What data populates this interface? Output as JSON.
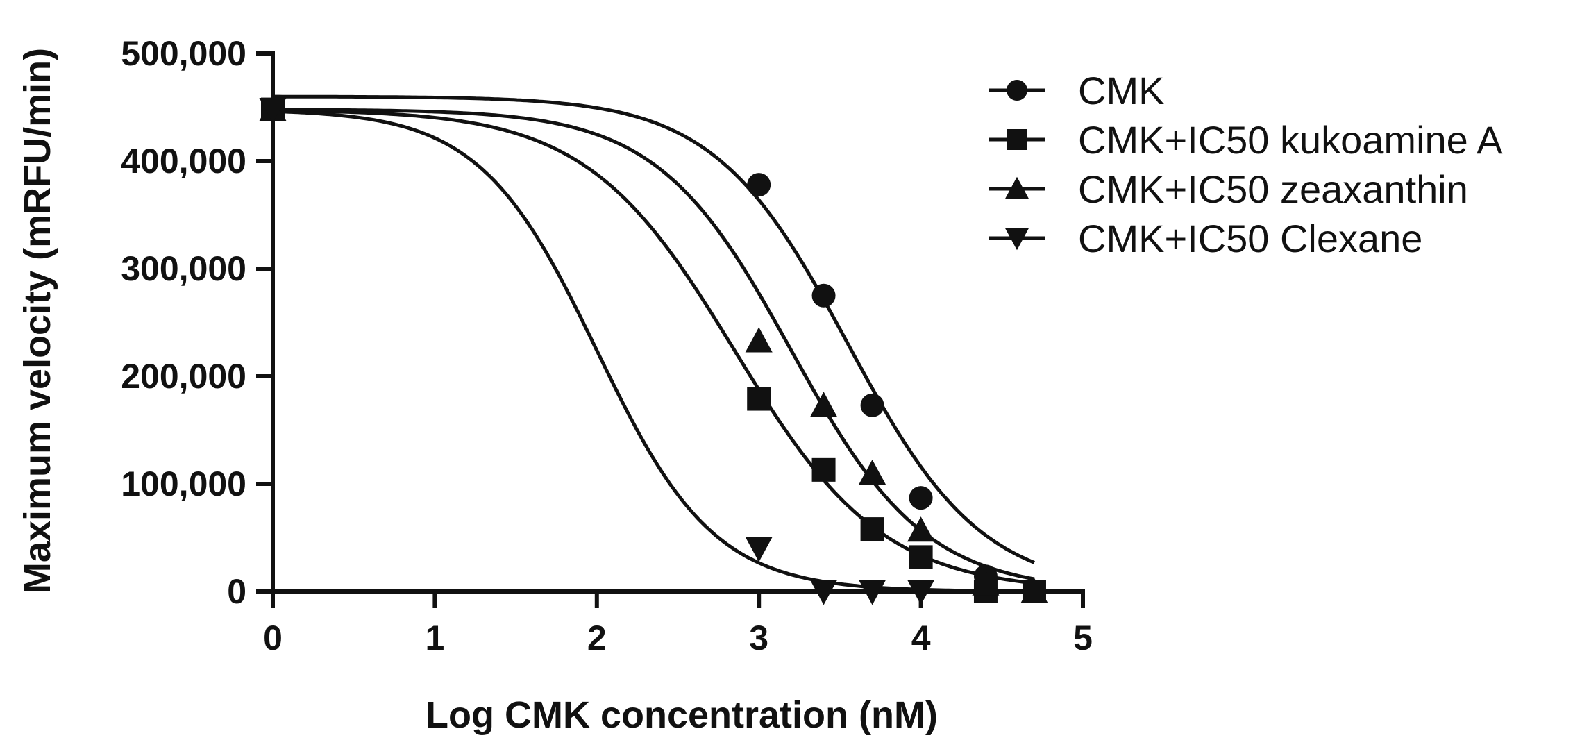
{
  "chart_data": {
    "type": "scatter",
    "title": "",
    "xlabel": "Log CMK concentration (nM)",
    "ylabel": "Maximum velocity (mRFU/min)",
    "xlim": [
      0,
      5
    ],
    "ylim": [
      0,
      500000
    ],
    "x_ticks": [
      0,
      1,
      2,
      3,
      4,
      5
    ],
    "x_tick_labels": [
      "0",
      "1",
      "2",
      "3",
      "4",
      "5"
    ],
    "y_ticks": [
      0,
      100000,
      200000,
      300000,
      400000,
      500000
    ],
    "y_tick_labels": [
      "0",
      "100,000",
      "200,000",
      "300,000",
      "400,000",
      "500,000"
    ],
    "grid": false,
    "legend_position": "right",
    "series": [
      {
        "name": "CMK",
        "marker": "circle",
        "x": [
          0,
          3.0,
          3.4,
          3.7,
          4.0,
          4.4,
          4.7
        ],
        "y": [
          448000,
          378000,
          275000,
          173000,
          87000,
          14000,
          0
        ],
        "fit": {
          "top": 460000,
          "bottom": 0,
          "logIC50": 3.55,
          "hill": 1.05
        }
      },
      {
        "name": "CMK+IC50 kukoamine A",
        "marker": "square",
        "x": [
          0,
          3.0,
          3.4,
          3.7,
          4.0,
          4.4,
          4.7
        ],
        "y": [
          448000,
          179000,
          113000,
          58000,
          32000,
          0,
          0
        ],
        "fit": {
          "top": 448000,
          "bottom": 0,
          "logIC50": 2.85,
          "hill": 0.95
        }
      },
      {
        "name": "CMK+IC50 zeaxanthin",
        "marker": "triangle-up",
        "x": [
          0,
          3.0,
          3.4,
          3.7,
          4.0,
          4.4,
          4.7
        ],
        "y": [
          448000,
          233000,
          173000,
          110000,
          57000,
          7000,
          0
        ],
        "fit": {
          "top": 448000,
          "bottom": 0,
          "logIC50": 3.2,
          "hill": 1.05
        }
      },
      {
        "name": "CMK+IC50 Clexane",
        "marker": "triangle-down",
        "x": [
          0,
          3.0,
          3.4,
          3.7,
          4.0
        ],
        "y": [
          448000,
          40000,
          0,
          0,
          0
        ],
        "fit": {
          "top": 448000,
          "bottom": 0,
          "logIC50": 2.0,
          "hill": 1.2
        }
      }
    ]
  }
}
